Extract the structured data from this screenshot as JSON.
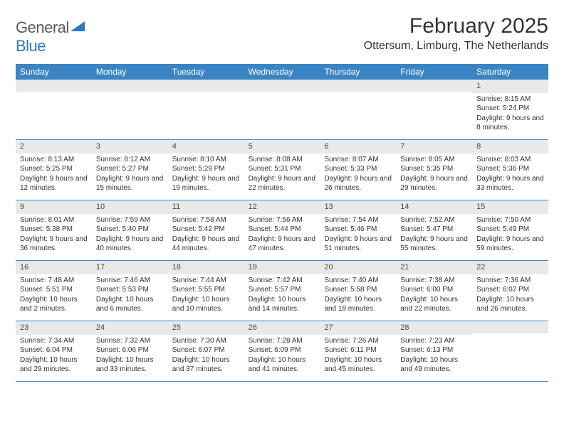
{
  "logo": {
    "text1": "General",
    "text2": "Blue",
    "color1": "#5a5a5a",
    "color2": "#2f78bd",
    "triangle_color": "#2f78bd"
  },
  "title": "February 2025",
  "location": "Ottersum, Limburg, The Netherlands",
  "header_bg": "#3b84c4",
  "daynum_bg": "#e9e9e9",
  "border_color": "#3b84c4",
  "weekdays": [
    "Sunday",
    "Monday",
    "Tuesday",
    "Wednesday",
    "Thursday",
    "Friday",
    "Saturday"
  ],
  "weeks": [
    [
      {
        "n": "",
        "sun": "",
        "set": "",
        "day": ""
      },
      {
        "n": "",
        "sun": "",
        "set": "",
        "day": ""
      },
      {
        "n": "",
        "sun": "",
        "set": "",
        "day": ""
      },
      {
        "n": "",
        "sun": "",
        "set": "",
        "day": ""
      },
      {
        "n": "",
        "sun": "",
        "set": "",
        "day": ""
      },
      {
        "n": "",
        "sun": "",
        "set": "",
        "day": ""
      },
      {
        "n": "1",
        "sun": "Sunrise: 8:15 AM",
        "set": "Sunset: 5:24 PM",
        "day": "Daylight: 9 hours and 8 minutes."
      }
    ],
    [
      {
        "n": "2",
        "sun": "Sunrise: 8:13 AM",
        "set": "Sunset: 5:25 PM",
        "day": "Daylight: 9 hours and 12 minutes."
      },
      {
        "n": "3",
        "sun": "Sunrise: 8:12 AM",
        "set": "Sunset: 5:27 PM",
        "day": "Daylight: 9 hours and 15 minutes."
      },
      {
        "n": "4",
        "sun": "Sunrise: 8:10 AM",
        "set": "Sunset: 5:29 PM",
        "day": "Daylight: 9 hours and 19 minutes."
      },
      {
        "n": "5",
        "sun": "Sunrise: 8:08 AM",
        "set": "Sunset: 5:31 PM",
        "day": "Daylight: 9 hours and 22 minutes."
      },
      {
        "n": "6",
        "sun": "Sunrise: 8:07 AM",
        "set": "Sunset: 5:33 PM",
        "day": "Daylight: 9 hours and 26 minutes."
      },
      {
        "n": "7",
        "sun": "Sunrise: 8:05 AM",
        "set": "Sunset: 5:35 PM",
        "day": "Daylight: 9 hours and 29 minutes."
      },
      {
        "n": "8",
        "sun": "Sunrise: 8:03 AM",
        "set": "Sunset: 5:36 PM",
        "day": "Daylight: 9 hours and 33 minutes."
      }
    ],
    [
      {
        "n": "9",
        "sun": "Sunrise: 8:01 AM",
        "set": "Sunset: 5:38 PM",
        "day": "Daylight: 9 hours and 36 minutes."
      },
      {
        "n": "10",
        "sun": "Sunrise: 7:59 AM",
        "set": "Sunset: 5:40 PM",
        "day": "Daylight: 9 hours and 40 minutes."
      },
      {
        "n": "11",
        "sun": "Sunrise: 7:58 AM",
        "set": "Sunset: 5:42 PM",
        "day": "Daylight: 9 hours and 44 minutes."
      },
      {
        "n": "12",
        "sun": "Sunrise: 7:56 AM",
        "set": "Sunset: 5:44 PM",
        "day": "Daylight: 9 hours and 47 minutes."
      },
      {
        "n": "13",
        "sun": "Sunrise: 7:54 AM",
        "set": "Sunset: 5:46 PM",
        "day": "Daylight: 9 hours and 51 minutes."
      },
      {
        "n": "14",
        "sun": "Sunrise: 7:52 AM",
        "set": "Sunset: 5:47 PM",
        "day": "Daylight: 9 hours and 55 minutes."
      },
      {
        "n": "15",
        "sun": "Sunrise: 7:50 AM",
        "set": "Sunset: 5:49 PM",
        "day": "Daylight: 9 hours and 59 minutes."
      }
    ],
    [
      {
        "n": "16",
        "sun": "Sunrise: 7:48 AM",
        "set": "Sunset: 5:51 PM",
        "day": "Daylight: 10 hours and 2 minutes."
      },
      {
        "n": "17",
        "sun": "Sunrise: 7:46 AM",
        "set": "Sunset: 5:53 PM",
        "day": "Daylight: 10 hours and 6 minutes."
      },
      {
        "n": "18",
        "sun": "Sunrise: 7:44 AM",
        "set": "Sunset: 5:55 PM",
        "day": "Daylight: 10 hours and 10 minutes."
      },
      {
        "n": "19",
        "sun": "Sunrise: 7:42 AM",
        "set": "Sunset: 5:57 PM",
        "day": "Daylight: 10 hours and 14 minutes."
      },
      {
        "n": "20",
        "sun": "Sunrise: 7:40 AM",
        "set": "Sunset: 5:58 PM",
        "day": "Daylight: 10 hours and 18 minutes."
      },
      {
        "n": "21",
        "sun": "Sunrise: 7:38 AM",
        "set": "Sunset: 6:00 PM",
        "day": "Daylight: 10 hours and 22 minutes."
      },
      {
        "n": "22",
        "sun": "Sunrise: 7:36 AM",
        "set": "Sunset: 6:02 PM",
        "day": "Daylight: 10 hours and 26 minutes."
      }
    ],
    [
      {
        "n": "23",
        "sun": "Sunrise: 7:34 AM",
        "set": "Sunset: 6:04 PM",
        "day": "Daylight: 10 hours and 29 minutes."
      },
      {
        "n": "24",
        "sun": "Sunrise: 7:32 AM",
        "set": "Sunset: 6:06 PM",
        "day": "Daylight: 10 hours and 33 minutes."
      },
      {
        "n": "25",
        "sun": "Sunrise: 7:30 AM",
        "set": "Sunset: 6:07 PM",
        "day": "Daylight: 10 hours and 37 minutes."
      },
      {
        "n": "26",
        "sun": "Sunrise: 7:28 AM",
        "set": "Sunset: 6:09 PM",
        "day": "Daylight: 10 hours and 41 minutes."
      },
      {
        "n": "27",
        "sun": "Sunrise: 7:26 AM",
        "set": "Sunset: 6:11 PM",
        "day": "Daylight: 10 hours and 45 minutes."
      },
      {
        "n": "28",
        "sun": "Sunrise: 7:23 AM",
        "set": "Sunset: 6:13 PM",
        "day": "Daylight: 10 hours and 49 minutes."
      },
      {
        "n": "",
        "sun": "",
        "set": "",
        "day": ""
      }
    ]
  ]
}
